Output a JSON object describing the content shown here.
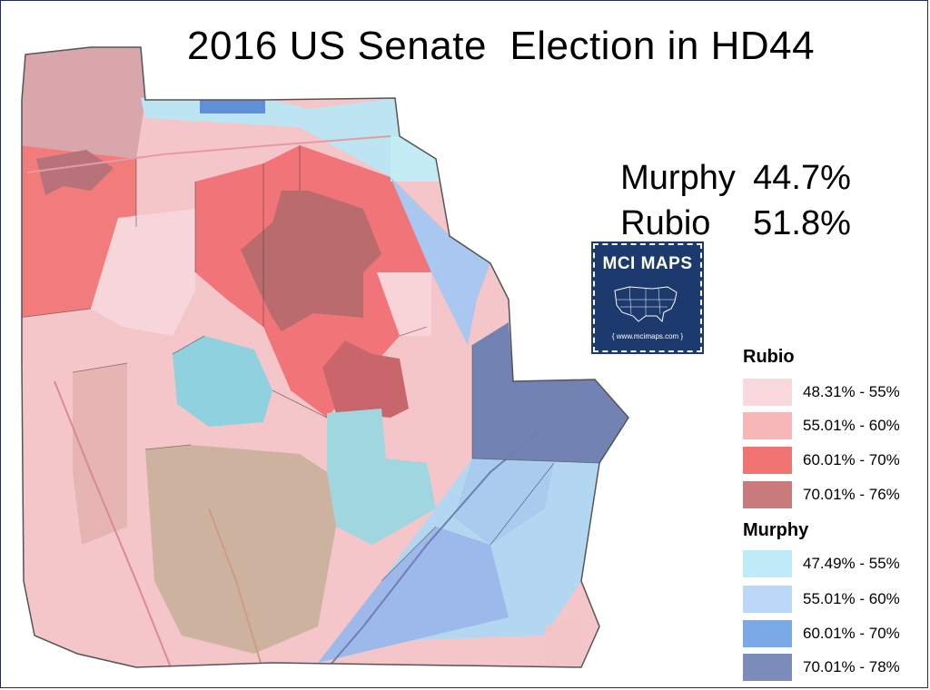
{
  "title": "2016 US Senate  Election in HD44",
  "results": [
    {
      "candidate": "Murphy",
      "percent": "44.7%"
    },
    {
      "candidate": "Rubio",
      "percent": "51.8%"
    }
  ],
  "logo": {
    "title": "MCI MAPS",
    "url": "{ www.mcimaps.com }"
  },
  "legend": {
    "rubio": {
      "heading": "Rubio",
      "items": [
        {
          "label": "48.31% - 55%",
          "color": "#f9d9de"
        },
        {
          "label": "55.01% - 60%",
          "color": "#f7b6b8"
        },
        {
          "label": "60.01% - 70%",
          "color": "#f27472"
        },
        {
          "label": "70.01% - 76%",
          "color": "#c97a7b"
        }
      ]
    },
    "murphy": {
      "heading": "Murphy",
      "items": [
        {
          "label": "47.49% - 55%",
          "color": "#bfeaf7"
        },
        {
          "label": "55.01% - 60%",
          "color": "#bcd6f7"
        },
        {
          "label": "60.01% - 70%",
          "color": "#7aa9e8"
        },
        {
          "label": "70.01% - 78%",
          "color": "#7d8dbb"
        }
      ]
    }
  }
}
